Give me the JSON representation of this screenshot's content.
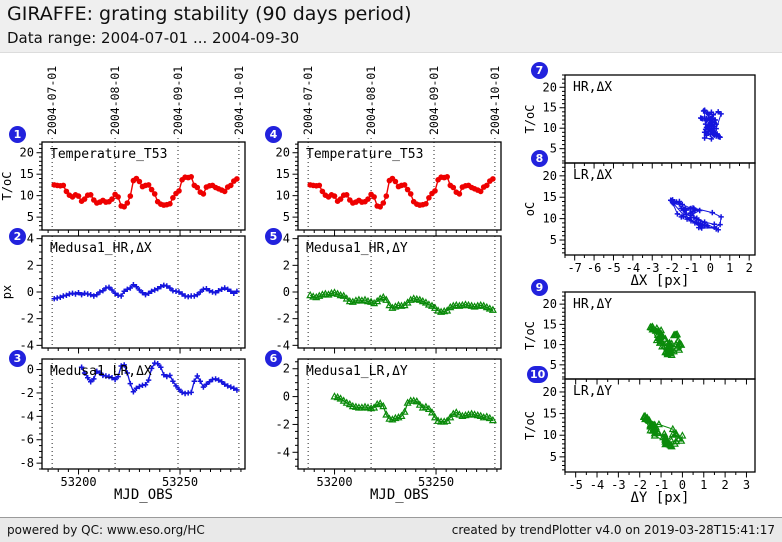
{
  "header": {
    "title": "GIRAFFE: grating stability (90 days period)",
    "subtitle": "Data range: 2004-07-01 ... 2004-09-30"
  },
  "footer": {
    "left": "powered by QC: www.eso.org/HC",
    "right": "created by trendPlotter v4.0 on 2019-03-28T15:41:17"
  },
  "colors": {
    "badge_blue": "#2222dd",
    "red": "#ee0000",
    "blue": "#1515dd",
    "green": "#0a8a0a"
  },
  "chart_data": {
    "type": "multi-panel line/scatter trend plot",
    "x_mjd": [
      53188,
      53189.5,
      53191,
      53192.5,
      53194,
      53195.5,
      53197,
      53198.5,
      53200,
      53201.5,
      53203,
      53204.5,
      53206,
      53207.5,
      53209,
      53210.5,
      53212,
      53213.5,
      53215,
      53216.5,
      53218,
      53219.5,
      53221,
      53222.5,
      53224,
      53225.5,
      53227,
      53228.5,
      53230,
      53231.5,
      53233,
      53234.5,
      53236,
      53237.5,
      53239,
      53240.5,
      53242,
      53243.5,
      53245,
      53246.5,
      53248,
      53249.5,
      53251,
      53252.5,
      53254,
      53255.5,
      53257,
      53258.5,
      53260,
      53261.5,
      53263,
      53264.5,
      53266,
      53267.5,
      53269,
      53270.5,
      53272,
      53273.5,
      53275,
      53276.5,
      53278
    ],
    "series": {
      "temperature": [
        12.5,
        12.4,
        12.3,
        12.4,
        11.0,
        10.1,
        9.7,
        10.2,
        9.9,
        8.7,
        9.2,
        10.1,
        10.2,
        9.0,
        8.3,
        8.5,
        8.9,
        8.5,
        8.6,
        9.2,
        10.3,
        9.7,
        7.6,
        7.4,
        8.3,
        9.9,
        13.5,
        14.0,
        13.3,
        12.1,
        12.4,
        12.5,
        11.4,
        10.4,
        8.6,
        8.0,
        7.8,
        7.9,
        8.1,
        9.5,
        10.5,
        11.1,
        13.7,
        14.3,
        14.2,
        14.4,
        12.4,
        11.9,
        10.8,
        10.4,
        12.0,
        12.3,
        12.4,
        11.9,
        11.6,
        11.3,
        11.0,
        12.0,
        12.4,
        13.4,
        13.9
      ],
      "hr_dx": [
        -0.5,
        -0.45,
        -0.4,
        -0.3,
        -0.25,
        -0.15,
        -0.1,
        -0.15,
        -0.05,
        -0.2,
        -0.1,
        -0.15,
        -0.2,
        -0.3,
        -0.2,
        0.0,
        0.1,
        0.3,
        0.35,
        0.15,
        -0.1,
        -0.25,
        -0.3,
        0.05,
        0.2,
        0.3,
        0.55,
        0.4,
        0.15,
        -0.05,
        -0.2,
        -0.1,
        0.05,
        0.15,
        0.25,
        0.4,
        0.5,
        0.45,
        0.3,
        0.1,
        0.05,
        0.0,
        -0.15,
        -0.3,
        -0.35,
        -0.3,
        -0.3,
        -0.2,
        0.0,
        0.2,
        0.25,
        0.1,
        0.0,
        -0.05,
        0.1,
        0.2,
        0.3,
        0.2,
        0.05,
        -0.1,
        0.05
      ],
      "lr_dx": [
        null,
        null,
        null,
        null,
        null,
        null,
        null,
        null,
        null,
        0.2,
        -0.3,
        -0.7,
        -1.05,
        -0.8,
        -0.15,
        -0.3,
        -0.5,
        -0.55,
        -0.6,
        -0.7,
        -0.85,
        -0.6,
        0.3,
        0.4,
        -0.3,
        -1.2,
        -1.9,
        -1.6,
        -1.45,
        -1.35,
        -1.3,
        -0.9,
        0.1,
        0.55,
        0.5,
        0.2,
        -0.45,
        -0.6,
        -0.5,
        -1.0,
        -1.4,
        -1.7,
        -1.95,
        -2.05,
        -2.0,
        -1.95,
        -1.0,
        -0.55,
        -1.0,
        -1.5,
        -1.25,
        -1.05,
        -0.85,
        -0.8,
        -0.9,
        -1.05,
        -1.25,
        -1.4,
        -1.5,
        -1.6,
        -1.75
      ],
      "hr_dy": [
        -0.25,
        -0.35,
        -0.4,
        -0.3,
        -0.2,
        -0.15,
        -0.2,
        -0.1,
        -0.05,
        -0.15,
        -0.25,
        -0.3,
        -0.5,
        -0.7,
        -0.75,
        -0.65,
        -0.6,
        -0.65,
        -0.6,
        -0.7,
        -0.75,
        -0.85,
        -0.7,
        -0.5,
        -0.4,
        -0.6,
        -1.0,
        -1.2,
        -1.1,
        -1.0,
        -1.05,
        -1.0,
        -0.8,
        -0.6,
        -0.5,
        -0.55,
        -0.6,
        -0.7,
        -0.8,
        -0.95,
        -1.05,
        -1.2,
        -1.4,
        -1.5,
        -1.45,
        -1.4,
        -1.15,
        -1.05,
        -1.0,
        -1.05,
        -1.0,
        -0.95,
        -1.0,
        -1.05,
        -1.1,
        -1.05,
        -1.0,
        -1.05,
        -1.15,
        -1.25,
        -1.35
      ],
      "lr_dy": [
        null,
        null,
        null,
        null,
        null,
        null,
        null,
        null,
        0.0,
        -0.05,
        -0.15,
        -0.3,
        -0.45,
        -0.55,
        -0.7,
        -0.75,
        -0.8,
        -0.8,
        -0.75,
        -0.8,
        -0.85,
        -0.8,
        -0.55,
        -0.5,
        -0.7,
        -1.3,
        -1.6,
        -1.65,
        -1.55,
        -1.5,
        -1.4,
        -1.1,
        -0.45,
        -0.3,
        -0.3,
        -0.35,
        -0.6,
        -0.8,
        -0.75,
        -0.9,
        -1.15,
        -1.5,
        -1.75,
        -1.8,
        -1.8,
        -1.75,
        -1.5,
        -1.25,
        -1.15,
        -1.3,
        -1.4,
        -1.35,
        -1.3,
        -1.25,
        -1.3,
        -1.35,
        -1.4,
        -1.5,
        -1.45,
        -1.55,
        -1.7
      ]
    },
    "date_gridlines": [
      {
        "mjd": 53187,
        "label": "2004-07-01"
      },
      {
        "mjd": 53218,
        "label": "2004-08-01"
      },
      {
        "mjd": 53249,
        "label": "2004-09-01"
      },
      {
        "mjd": 53279,
        "label": "2004-10-01"
      }
    ],
    "plots": [
      {
        "id": "p1",
        "badge": "1",
        "label": "Temperature_T53",
        "ylabel": "T/oC",
        "xlabel": null,
        "x": "mjd",
        "y": "temperature",
        "color": "#ee0000",
        "marker": "circle",
        "lw": 1.4,
        "xlim": [
          53182,
          53282
        ],
        "ylim": [
          2,
          22.5
        ],
        "xticks": {
          "major": [
            53200,
            53250
          ],
          "minor_step": 5
        },
        "yticks": {
          "major": [
            5,
            10,
            15,
            20
          ],
          "minor_step": 1
        },
        "date_lines": true,
        "date_labels": true,
        "show_xtick_labels": false
      },
      {
        "id": "p2",
        "badge": "2",
        "label": "Medusa1_HR,ΔX",
        "ylabel": "px",
        "xlabel": null,
        "x": "mjd",
        "y": "hr_dx",
        "color": "#1515dd",
        "marker": "plus",
        "lw": 1.3,
        "xlim": [
          53182,
          53282
        ],
        "ylim": [
          -4.2,
          4.2
        ],
        "xticks": {
          "major": [
            53200,
            53250
          ],
          "minor_step": 5
        },
        "yticks": {
          "major": [
            -4,
            -2,
            0,
            2,
            4
          ],
          "minor_step": 0.5
        },
        "date_lines": true,
        "date_labels": false,
        "show_xtick_labels": false
      },
      {
        "id": "p3",
        "badge": "3",
        "label": "Medusa1_LR,ΔX",
        "ylabel": null,
        "xlabel": "MJD_OBS",
        "x": "mjd",
        "y": "lr_dx",
        "color": "#1515dd",
        "marker": "plus",
        "lw": 1.3,
        "xlim": [
          53182,
          53282
        ],
        "ylim": [
          -8.5,
          0.9
        ],
        "xticks": {
          "major": [
            53200,
            53250
          ],
          "minor_step": 5
        },
        "yticks": {
          "major": [
            -8,
            -6,
            -4,
            -2,
            0
          ],
          "minor_step": 0.5
        },
        "date_lines": true,
        "date_labels": false,
        "show_xtick_labels": true
      },
      {
        "id": "p4",
        "badge": "4",
        "label": "Temperature_T53",
        "ylabel": null,
        "xlabel": null,
        "x": "mjd",
        "y": "temperature",
        "color": "#ee0000",
        "marker": "circle",
        "lw": 1.4,
        "xlim": [
          53182,
          53282
        ],
        "ylim": [
          2,
          22.5
        ],
        "xticks": {
          "major": [
            53200,
            53250
          ],
          "minor_step": 5
        },
        "yticks": {
          "major": [
            5,
            10,
            15,
            20
          ],
          "minor_step": 1
        },
        "date_lines": true,
        "date_labels": true,
        "show_xtick_labels": false
      },
      {
        "id": "p5",
        "badge": "5",
        "label": "Medusa1_HR,ΔY",
        "ylabel": null,
        "xlabel": null,
        "x": "mjd",
        "y": "hr_dy",
        "color": "#0a8a0a",
        "marker": "triangle",
        "lw": 1.3,
        "xlim": [
          53182,
          53282
        ],
        "ylim": [
          -4.2,
          4.2
        ],
        "xticks": {
          "major": [
            53200,
            53250
          ],
          "minor_step": 5
        },
        "yticks": {
          "major": [
            -4,
            -2,
            0,
            2,
            4
          ],
          "minor_step": 0.5
        },
        "date_lines": true,
        "date_labels": false,
        "show_xtick_labels": false
      },
      {
        "id": "p6",
        "badge": "6",
        "label": "Medusa1_LR,ΔY",
        "ylabel": null,
        "xlabel": "MJD_OBS",
        "x": "mjd",
        "y": "lr_dy",
        "color": "#0a8a0a",
        "marker": "triangle",
        "lw": 1.3,
        "xlim": [
          53182,
          53282
        ],
        "ylim": [
          -5.2,
          2.7
        ],
        "xticks": {
          "major": [
            53200,
            53250
          ],
          "minor_step": 5
        },
        "yticks": {
          "major": [
            -4,
            -2,
            0,
            2
          ],
          "minor_step": 0.5
        },
        "date_lines": true,
        "date_labels": false,
        "show_xtick_labels": true
      },
      {
        "id": "p7",
        "badge": "7",
        "label": "HR,ΔX",
        "ylabel": "T/oC",
        "xlabel": null,
        "x": "hr_dx",
        "y": "temperature",
        "color": "#1515dd",
        "marker": "plus",
        "lw": 1.0,
        "xlim": [
          -7.5,
          2.3
        ],
        "ylim": [
          1.5,
          23
        ],
        "xticks": {
          "major": [
            -7,
            -6,
            -5,
            -4,
            -3,
            -2,
            -1,
            0,
            1,
            2
          ],
          "minor_step": 0.5
        },
        "yticks": {
          "major": [
            5,
            10,
            15,
            20
          ],
          "minor_step": 1
        },
        "date_lines": false,
        "date_labels": false,
        "show_xtick_labels": false
      },
      {
        "id": "p8",
        "badge": "8",
        "label": "LR,ΔX",
        "ylabel": "oC",
        "xlabel": "ΔX [px]",
        "x": "lr_dx",
        "y": "temperature",
        "color": "#1515dd",
        "marker": "plus",
        "lw": 1.0,
        "xlim": [
          -7.5,
          2.3
        ],
        "ylim": [
          1.5,
          23
        ],
        "xticks": {
          "major": [
            -7,
            -6,
            -5,
            -4,
            -3,
            -2,
            -1,
            0,
            1,
            2
          ],
          "minor_step": 0.5
        },
        "yticks": {
          "major": [
            5,
            10,
            15,
            20
          ],
          "minor_step": 1
        },
        "date_lines": false,
        "date_labels": false,
        "show_xtick_labels": true
      },
      {
        "id": "p9",
        "badge": "9",
        "label": "HR,ΔY",
        "ylabel": "T/oC",
        "xlabel": null,
        "x": "hr_dy",
        "y": "temperature",
        "color": "#0a8a0a",
        "marker": "triangle",
        "lw": 1.0,
        "xlim": [
          -5.5,
          3.4
        ],
        "ylim": [
          1.5,
          23
        ],
        "xticks": {
          "major": [
            -5,
            -4,
            -3,
            -2,
            -1,
            0,
            1,
            2,
            3
          ],
          "minor_step": 0.5
        },
        "yticks": {
          "major": [
            5,
            10,
            15,
            20
          ],
          "minor_step": 1
        },
        "date_lines": false,
        "date_labels": false,
        "show_xtick_labels": false
      },
      {
        "id": "p10",
        "badge": "10",
        "label": "LR,ΔY",
        "ylabel": "T/oC",
        "xlabel": "ΔY [px]",
        "x": "lr_dy",
        "y": "temperature",
        "color": "#0a8a0a",
        "marker": "triangle",
        "lw": 1.0,
        "xlim": [
          -5.5,
          3.4
        ],
        "ylim": [
          1.5,
          23
        ],
        "xticks": {
          "major": [
            -5,
            -4,
            -3,
            -2,
            -1,
            0,
            1,
            2,
            3
          ],
          "minor_step": 0.5
        },
        "yticks": {
          "major": [
            5,
            10,
            15,
            20
          ],
          "minor_step": 1
        },
        "date_lines": false,
        "date_labels": false,
        "show_xtick_labels": true
      }
    ]
  }
}
